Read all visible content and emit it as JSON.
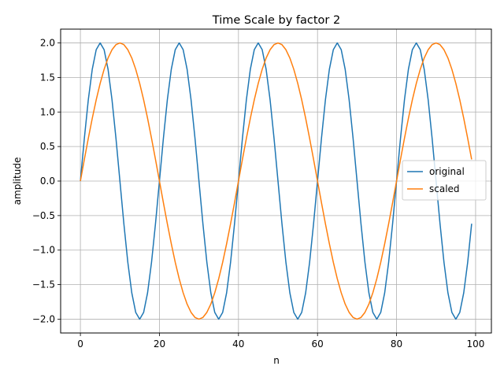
{
  "chart_data": {
    "type": "line",
    "title": "Time Scale by factor 2",
    "xlabel": "n",
    "ylabel": "amplitude",
    "xlim": [
      -5,
      104
    ],
    "ylim": [
      -2.2,
      2.2
    ],
    "xticks": [
      0,
      20,
      40,
      60,
      80,
      100
    ],
    "xtick_labels": [
      "0",
      "20",
      "40",
      "60",
      "80",
      "100"
    ],
    "yticks": [
      2.0,
      1.5,
      1.0,
      0.5,
      0.0,
      -0.5,
      -1.0,
      -1.5,
      -2.0
    ],
    "ytick_labels": [
      "2.0",
      "1.5",
      "1.0",
      "0.5",
      "0.0",
      "−0.5",
      "−1.0",
      "−1.5",
      "−2.0"
    ],
    "grid": true,
    "legend_position": "center-right",
    "series": [
      {
        "name": "original",
        "color": "#1f77b4",
        "values": [
          0,
          0.618,
          1.176,
          1.618,
          1.902,
          2.0,
          1.902,
          1.618,
          1.176,
          0.618,
          0,
          -0.618,
          -1.176,
          -1.618,
          -1.902,
          -2.0,
          -1.902,
          -1.618,
          -1.176,
          -0.618,
          0,
          0.618,
          1.176,
          1.618,
          1.902,
          2.0,
          1.902,
          1.618,
          1.176,
          0.618,
          0,
          -0.618,
          -1.176,
          -1.618,
          -1.902,
          -2.0,
          -1.902,
          -1.618,
          -1.176,
          -0.618,
          0,
          0.618,
          1.176,
          1.618,
          1.902,
          2.0,
          1.902,
          1.618,
          1.176,
          0.618,
          0,
          -0.618,
          -1.176,
          -1.618,
          -1.902,
          -2.0,
          -1.902,
          -1.618,
          -1.176,
          -0.618,
          0,
          0.618,
          1.176,
          1.618,
          1.902,
          2.0,
          1.902,
          1.618,
          1.176,
          0.618,
          0,
          -0.618,
          -1.176,
          -1.618,
          -1.902,
          -2.0,
          -1.902,
          -1.618,
          -1.176,
          -0.618,
          0,
          0.618,
          1.176,
          1.618,
          1.902,
          2.0,
          1.902,
          1.618,
          1.176,
          0.618,
          0,
          -0.618,
          -1.176,
          -1.618,
          -1.902,
          -2.0,
          -1.902,
          -1.618,
          -1.176,
          -0.618
        ]
      },
      {
        "name": "scaled",
        "color": "#ff7f0e",
        "values": [
          0,
          0.313,
          0.618,
          0.908,
          1.176,
          1.414,
          1.618,
          1.782,
          1.902,
          1.975,
          2.0,
          1.975,
          1.902,
          1.782,
          1.618,
          1.414,
          1.176,
          0.908,
          0.618,
          0.313,
          0,
          -0.313,
          -0.618,
          -0.908,
          -1.176,
          -1.414,
          -1.618,
          -1.782,
          -1.902,
          -1.975,
          -2.0,
          -1.975,
          -1.902,
          -1.782,
          -1.618,
          -1.414,
          -1.176,
          -0.908,
          -0.618,
          -0.313,
          0,
          0.313,
          0.618,
          0.908,
          1.176,
          1.414,
          1.618,
          1.782,
          1.902,
          1.975,
          2.0,
          1.975,
          1.902,
          1.782,
          1.618,
          1.414,
          1.176,
          0.908,
          0.618,
          0.313,
          0,
          -0.313,
          -0.618,
          -0.908,
          -1.176,
          -1.414,
          -1.618,
          -1.782,
          -1.902,
          -1.975,
          -2.0,
          -1.975,
          -1.902,
          -1.782,
          -1.618,
          -1.414,
          -1.176,
          -0.908,
          -0.618,
          -0.313,
          0,
          0.313,
          0.618,
          0.908,
          1.176,
          1.414,
          1.618,
          1.782,
          1.902,
          1.975,
          2.0,
          1.975,
          1.902,
          1.782,
          1.618,
          1.414,
          1.176,
          0.908,
          0.618,
          0.313
        ]
      }
    ]
  }
}
